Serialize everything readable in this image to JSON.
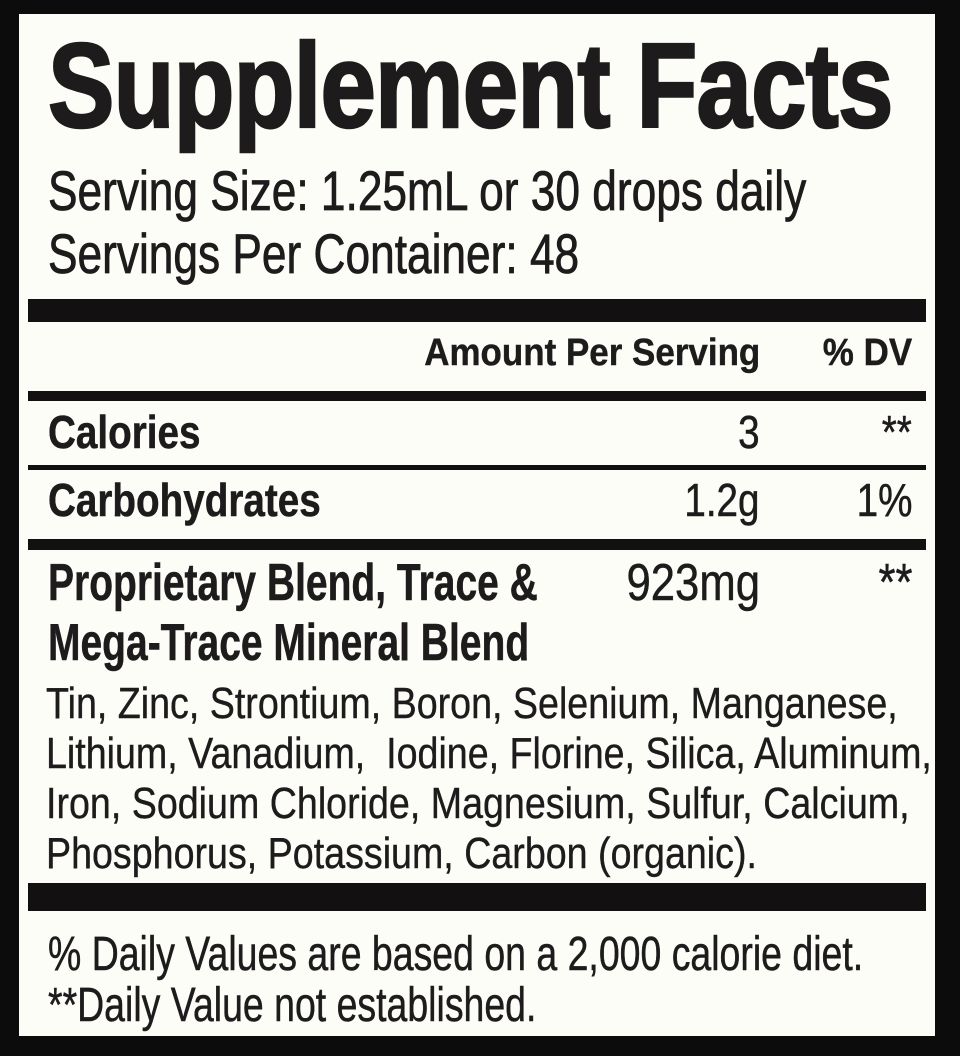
{
  "panel": {
    "title": "Supplement Facts",
    "serving_lines": [
      "Serving Size: 1.25mL or 30 drops daily",
      "Servings Per Container: 48"
    ],
    "columns": {
      "amount_header": "Amount Per Serving",
      "dv_header": "% DV"
    },
    "rows": [
      {
        "name": "Calories",
        "amount": "3",
        "dv": "**"
      },
      {
        "name": "Carbohydrates",
        "amount": "1.2g",
        "dv": "1%"
      }
    ],
    "blend": {
      "name_lines": [
        "Proprietary Blend, Trace &",
        "Mega-Trace Mineral Blend"
      ],
      "amount": "923mg",
      "dv": "**",
      "ingredients_lines": [
        "Tin, Zinc, Strontium, Boron, Selenium, Manganese,",
        "Lithium, Vanadium,  Iodine, Florine, Silica, Aluminum,",
        "Iron, Sodium Chloride, Magnesium, Sulfur, Calcium,",
        "Phosphorus, Potassium, Carbon (organic)."
      ]
    },
    "footnotes": [
      "% Daily Values are based on a 2,000 calorie diet.",
      "**Daily Value not established."
    ]
  },
  "colors": {
    "background": "#0c0c0c",
    "paper": "#fdfdf7",
    "ink": "#1e1b1c",
    "bar": "#121010"
  }
}
